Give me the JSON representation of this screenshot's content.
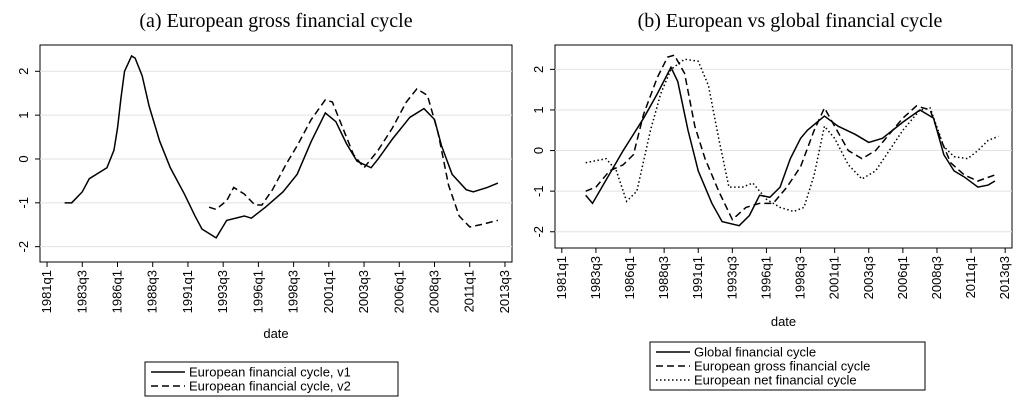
{
  "chart_data": [
    {
      "type": "line",
      "title": "(a) European gross financial cycle",
      "x_label": "date",
      "xlim": [
        1980.5,
        2014.0
      ],
      "ylim": [
        -2.35,
        2.6
      ],
      "yticks": [
        -2,
        -1,
        0,
        1,
        2
      ],
      "grid": true,
      "xticks": [
        {
          "value": 1981,
          "label": "1981q1"
        },
        {
          "value": 1983.5,
          "label": "1983q3"
        },
        {
          "value": 1986,
          "label": "1986q1"
        },
        {
          "value": 1988.5,
          "label": "1988q3"
        },
        {
          "value": 1991,
          "label": "1991q1"
        },
        {
          "value": 1993.5,
          "label": "1993q3"
        },
        {
          "value": 1996,
          "label": "1996q1"
        },
        {
          "value": 1998.5,
          "label": "1998q3"
        },
        {
          "value": 2001,
          "label": "2001q1"
        },
        {
          "value": 2003.5,
          "label": "2003q3"
        },
        {
          "value": 2006,
          "label": "2006q1"
        },
        {
          "value": 2008.5,
          "label": "2008q3"
        },
        {
          "value": 2011,
          "label": "2011q1"
        },
        {
          "value": 2013.5,
          "label": "2013q3"
        }
      ],
      "series": [
        {
          "name": "European financial cycle, v1",
          "color": "#000000",
          "style": "solid",
          "x": [
            1982.25,
            1982.75,
            1983.5,
            1984,
            1984.75,
            1985.25,
            1985.75,
            1986,
            1986.25,
            1986.5,
            1987,
            1987.25,
            1987.75,
            1988.25,
            1989,
            1989.75,
            1990.75,
            1991.5,
            1992,
            1993,
            1993.75,
            1995,
            1995.5,
            1996.5,
            1997.75,
            1998.75,
            1999.75,
            2000.75,
            2001.5,
            2002.25,
            2003,
            2004,
            2004.5,
            2005.5,
            2006.75,
            2007.75,
            2008.5,
            2009,
            2009.75,
            2010.75,
            2011.25,
            2012.25,
            2013
          ],
          "values": [
            -1.0,
            -1.0,
            -0.75,
            -0.45,
            -0.3,
            -0.2,
            0.2,
            0.7,
            1.4,
            2.0,
            2.35,
            2.3,
            1.9,
            1.2,
            0.4,
            -0.2,
            -0.8,
            -1.3,
            -1.6,
            -1.8,
            -1.4,
            -1.3,
            -1.35,
            -1.1,
            -0.75,
            -0.35,
            0.4,
            1.05,
            0.85,
            0.35,
            -0.05,
            -0.2,
            0.0,
            0.45,
            0.95,
            1.15,
            0.9,
            0.3,
            -0.35,
            -0.7,
            -0.75,
            -0.65,
            -0.55
          ]
        },
        {
          "name": "European financial cycle, v2",
          "color": "#000000",
          "style": "dashed",
          "x": [
            1992.5,
            1993,
            1993.75,
            1994.25,
            1995,
            1995.75,
            1996.25,
            1997,
            1998,
            1998.75,
            1999.75,
            2000.75,
            2001.25,
            2002,
            2002.75,
            2003.5,
            2004.5,
            2005.5,
            2006.5,
            2007.25,
            2008,
            2008.75,
            2009.5,
            2010.25,
            2011,
            2011.75,
            2013
          ],
          "values": [
            -1.1,
            -1.15,
            -0.95,
            -0.65,
            -0.8,
            -1.05,
            -1.05,
            -0.7,
            -0.1,
            0.3,
            0.9,
            1.35,
            1.3,
            0.7,
            0.1,
            -0.2,
            0.2,
            0.7,
            1.3,
            1.6,
            1.45,
            0.6,
            -0.6,
            -1.3,
            -1.55,
            -1.5,
            -1.4
          ]
        }
      ]
    },
    {
      "type": "line",
      "title": "(b) European vs global financial cycle",
      "x_label": "date",
      "xlim": [
        1980.5,
        2014.0
      ],
      "ylim": [
        -2.4,
        2.6
      ],
      "yticks": [
        -2,
        -1,
        0,
        1,
        2
      ],
      "grid": true,
      "xticks": [
        {
          "value": 1981,
          "label": "1981q1"
        },
        {
          "value": 1983.5,
          "label": "1983q3"
        },
        {
          "value": 1986,
          "label": "1986q1"
        },
        {
          "value": 1988.5,
          "label": "1988q3"
        },
        {
          "value": 1991,
          "label": "1991q1"
        },
        {
          "value": 1993.5,
          "label": "1993q3"
        },
        {
          "value": 1996,
          "label": "1996q1"
        },
        {
          "value": 1998.5,
          "label": "1998q3"
        },
        {
          "value": 2001,
          "label": "2001q1"
        },
        {
          "value": 2003.5,
          "label": "2003q3"
        },
        {
          "value": 2006,
          "label": "2006q1"
        },
        {
          "value": 2008.5,
          "label": "2008q3"
        },
        {
          "value": 2011,
          "label": "2011q1"
        },
        {
          "value": 2013.5,
          "label": "2013q3"
        }
      ],
      "series": [
        {
          "name": "Global financial cycle",
          "color": "#000000",
          "style": "solid",
          "x": [
            1982.75,
            1983.25,
            1985.5,
            1987,
            1988,
            1989,
            1989.5,
            1990.25,
            1991,
            1992,
            1992.75,
            1994,
            1994.75,
            1995.5,
            1996.25,
            1997,
            1997.75,
            1998.5,
            1999,
            2000.25,
            2001.25,
            2002.5,
            2003.5,
            2004.5,
            2006,
            2007.25,
            2008.25,
            2009,
            2009.75,
            2010.5,
            2011.5,
            2012.25,
            2012.75
          ],
          "values": [
            -1.1,
            -1.3,
            0.0,
            0.8,
            1.4,
            2.05,
            1.7,
            0.5,
            -0.5,
            -1.3,
            -1.75,
            -1.85,
            -1.6,
            -1.1,
            -1.15,
            -0.9,
            -0.2,
            0.3,
            0.5,
            0.85,
            0.6,
            0.4,
            0.2,
            0.3,
            0.7,
            1.0,
            0.8,
            -0.1,
            -0.5,
            -0.65,
            -0.9,
            -0.85,
            -0.75
          ]
        },
        {
          "name": "European gross financial cycle",
          "color": "#000000",
          "style": "dashed",
          "x": [
            1982.75,
            1983.5,
            1984.5,
            1985.5,
            1986.25,
            1987,
            1988,
            1988.75,
            1989.25,
            1990,
            1990.75,
            1991.5,
            1992.5,
            1993.5,
            1994.5,
            1995.5,
            1996.5,
            1997.5,
            1998.5,
            1999.5,
            2000.25,
            2001,
            2002,
            2003,
            2004,
            2005,
            2006,
            2007,
            2008,
            2008.75,
            2009.5,
            2010.5,
            2011.5,
            2012.75
          ],
          "values": [
            -1.0,
            -0.9,
            -0.5,
            -0.35,
            -0.1,
            0.9,
            1.8,
            2.3,
            2.35,
            1.9,
            0.6,
            -0.2,
            -1.0,
            -1.7,
            -1.4,
            -1.3,
            -1.3,
            -0.9,
            -0.4,
            0.5,
            1.05,
            0.6,
            0.0,
            -0.2,
            0.0,
            0.4,
            0.8,
            1.1,
            1.0,
            0.3,
            -0.3,
            -0.6,
            -0.75,
            -0.6
          ]
        },
        {
          "name": "European net financial cycle",
          "color": "#000000",
          "style": "dotted",
          "x": [
            1982.75,
            1983.5,
            1984.25,
            1985,
            1985.75,
            1986.5,
            1987.5,
            1988.25,
            1989,
            1990,
            1991,
            1991.75,
            1992.5,
            1993.25,
            1994.25,
            1995,
            1996,
            1997,
            1998,
            1998.75,
            1999.5,
            2000.25,
            2001,
            2002,
            2003,
            2004,
            2005,
            2006,
            2007.25,
            2008,
            2009,
            2009.75,
            2010.75,
            2011.5,
            2012.25,
            2013
          ],
          "values": [
            -0.3,
            -0.25,
            -0.2,
            -0.5,
            -1.25,
            -1.0,
            0.5,
            1.4,
            2.0,
            2.25,
            2.2,
            1.6,
            0.3,
            -0.9,
            -0.9,
            -0.8,
            -1.2,
            -1.4,
            -1.5,
            -1.4,
            -0.6,
            0.6,
            0.3,
            -0.35,
            -0.7,
            -0.5,
            0.0,
            0.5,
            1.0,
            1.05,
            0.1,
            -0.15,
            -0.2,
            0.0,
            0.25,
            0.35
          ]
        }
      ]
    }
  ]
}
